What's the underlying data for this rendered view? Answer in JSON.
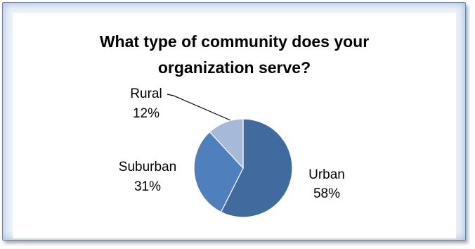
{
  "chart_data": {
    "type": "pie",
    "title": "What type of community does your organization serve?",
    "title_lines": [
      "What type of community does your",
      "organization serve?"
    ],
    "legend": "none",
    "slices": [
      {
        "label": "Urban",
        "value": 58,
        "value_label": "58%",
        "color": "#416b9e"
      },
      {
        "label": "Suburban",
        "value": 31,
        "value_label": "31%",
        "color": "#4f80bd"
      },
      {
        "label": "Rural",
        "value": 12,
        "value_label": "12%",
        "color": "#a7b9d8"
      }
    ]
  }
}
